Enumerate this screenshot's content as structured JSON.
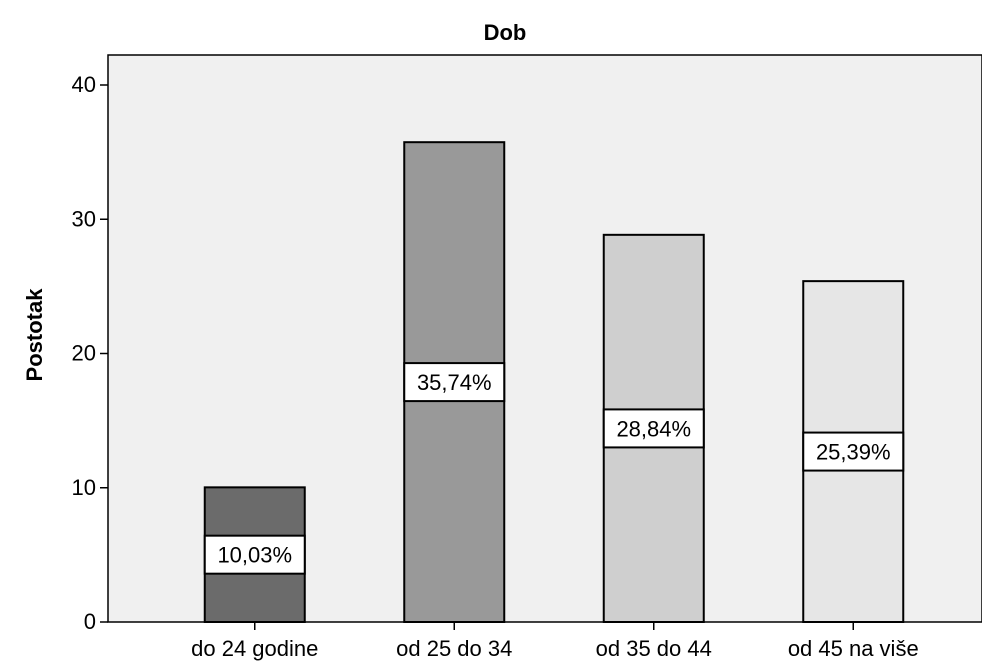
{
  "chart_data": {
    "type": "bar",
    "title": "Dob",
    "xlabel": "",
    "ylabel": "Postotak",
    "categories": [
      "do 24 godine",
      "od 25 do 34",
      "od 35 do 44",
      "od 45 na više"
    ],
    "values": [
      10.03,
      35.74,
      28.84,
      25.39
    ],
    "data_labels": [
      "10,03%",
      "35,74%",
      "28,84%",
      "25,39%"
    ],
    "bar_colors": [
      "#6b6b6b",
      "#999999",
      "#cfcfcf",
      "#e6e6e6"
    ],
    "plot_background": "#f0f0f0",
    "ylim": [
      0,
      40
    ],
    "yticks": [
      0,
      10,
      20,
      30,
      40
    ],
    "grid": false,
    "legend": "none"
  }
}
